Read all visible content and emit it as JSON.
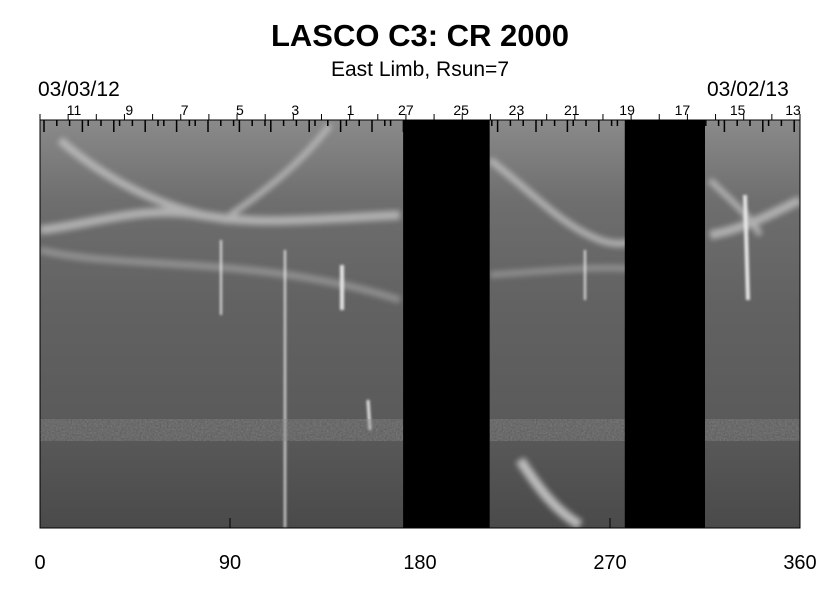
{
  "chart_data": {
    "type": "heatmap",
    "title": "LASCO C3: CR 2000",
    "subtitle": "East Limb, Rsun=7",
    "start_date": "03/03/12",
    "end_date": "03/02/13",
    "xlim": [
      0,
      360
    ],
    "x_ticks": [
      0,
      90,
      180,
      270,
      360
    ],
    "x_tick_labels": [
      "0",
      "90",
      "180",
      "270",
      "360"
    ],
    "day_labels": [
      "11",
      "9",
      "7",
      "5",
      "3",
      "1",
      "27",
      "25",
      "23",
      "21",
      "19",
      "17",
      "15",
      "13"
    ],
    "data_gaps": [
      [
        172,
        213
      ],
      [
        277,
        315
      ]
    ],
    "colormap": "grayscale"
  }
}
